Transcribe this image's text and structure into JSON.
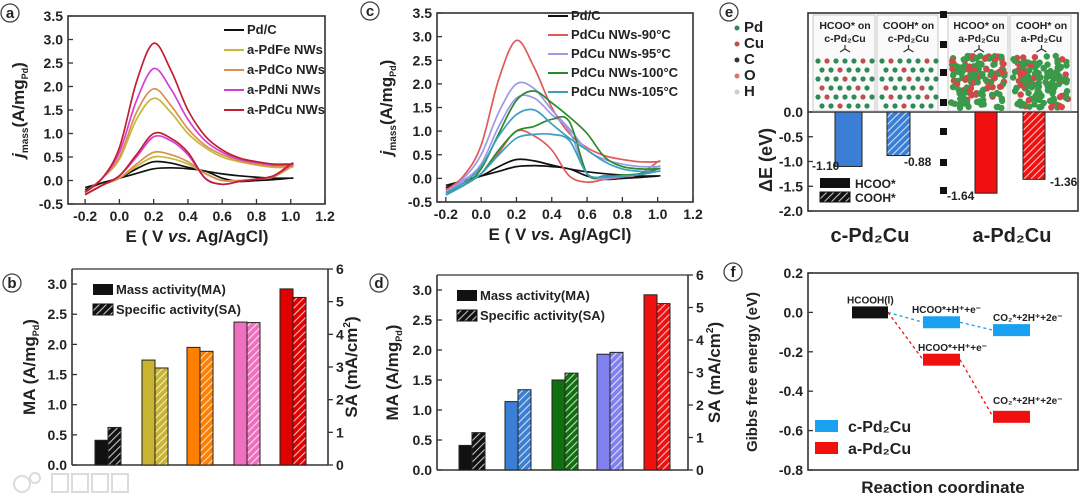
{
  "panel_labels": {
    "a": "a",
    "b": "b",
    "c": "c",
    "d": "d",
    "e": "e",
    "f": "f"
  },
  "watermark": "大数跨境",
  "chart_data": [
    {
      "id": "a",
      "type": "line",
      "ylabel_parts": {
        "j": "j",
        "sub": "mass",
        "main": "(A/mg",
        "sub2": "Pd",
        "end": ")"
      },
      "xlabel_parts": {
        "pre": "E ( V ",
        "it": "vs.",
        "post": " Ag/AgCl)"
      },
      "xlim": [
        -0.3,
        1.2
      ],
      "ylim": [
        -0.5,
        3.5
      ],
      "xticks": [
        "-0.2",
        "0.0",
        "0.2",
        "0.4",
        "0.6",
        "0.8",
        "1.0",
        "1.2"
      ],
      "yticks": [
        "-0.5",
        "0.0",
        "0.5",
        "1.0",
        "1.5",
        "2.0",
        "2.5",
        "3.0",
        "3.5"
      ],
      "legend": "top-right",
      "x": [
        -0.2,
        -0.1,
        0,
        0.1,
        0.2,
        0.3,
        0.4,
        0.5,
        0.6,
        0.7,
        0.8,
        0.9,
        1.0
      ],
      "series": [
        {
          "name": "Pd/C",
          "color": "#111111",
          "forward": [
            -0.15,
            -0.05,
            0.05,
            0.15,
            0.25,
            0.27,
            0.25,
            0.2,
            0.05,
            -0.02,
            0.0,
            0.02,
            0.05
          ],
          "reverse": [
            -0.2,
            -0.05,
            0.05,
            0.25,
            0.4,
            0.37,
            0.28,
            0.2,
            0.14,
            0.1,
            0.07,
            0.05,
            0.05
          ]
        },
        {
          "name": "a-PdFe NWs",
          "color": "#c8b838",
          "forward": [
            -0.3,
            -0.1,
            0.05,
            0.3,
            0.5,
            0.47,
            0.35,
            0.15,
            0.0,
            0.0,
            0.03,
            0.08,
            0.28
          ],
          "reverse": [
            -0.25,
            0.05,
            0.45,
            1.3,
            1.75,
            1.45,
            1.0,
            0.7,
            0.5,
            0.4,
            0.33,
            0.28,
            0.28
          ]
        },
        {
          "name": "a-PdCo NWs",
          "color": "#d99050",
          "forward": [
            -0.3,
            -0.1,
            0.05,
            0.35,
            0.6,
            0.55,
            0.4,
            0.15,
            0.0,
            0.0,
            0.03,
            0.08,
            0.3
          ],
          "reverse": [
            -0.25,
            0.05,
            0.5,
            1.45,
            1.95,
            1.6,
            1.1,
            0.75,
            0.55,
            0.42,
            0.35,
            0.3,
            0.3
          ]
        },
        {
          "name": "a-PdNi NWs",
          "color": "#d040d8",
          "forward": [
            -0.3,
            -0.1,
            0.1,
            0.5,
            0.93,
            0.85,
            0.55,
            0.05,
            -0.08,
            -0.02,
            0.03,
            0.1,
            0.33
          ],
          "reverse": [
            -0.25,
            0.05,
            0.6,
            1.7,
            2.38,
            1.95,
            1.3,
            0.85,
            0.6,
            0.45,
            0.38,
            0.33,
            0.33
          ]
        },
        {
          "name": "a-PdCu NWs",
          "color": "#c02030",
          "forward": [
            -0.3,
            -0.1,
            0.1,
            0.55,
            1.0,
            0.9,
            0.6,
            0.05,
            -0.08,
            -0.02,
            0.03,
            0.1,
            0.35
          ],
          "reverse": [
            -0.25,
            0.05,
            0.7,
            2.1,
            2.92,
            2.35,
            1.5,
            0.95,
            0.65,
            0.48,
            0.4,
            0.35,
            0.35
          ]
        }
      ]
    },
    {
      "id": "c",
      "type": "line",
      "xlim": [
        -0.25,
        1.2
      ],
      "ylim": [
        -0.5,
        3.5
      ],
      "xticks": [
        "-0.2",
        "0.0",
        "0.2",
        "0.4",
        "0.6",
        "0.8",
        "1.0",
        "1.2"
      ],
      "yticks": [
        "-0.5",
        "0.0",
        "0.5",
        "1.0",
        "1.5",
        "2.0",
        "2.5",
        "3.0",
        "3.5"
      ],
      "legend": "top-right",
      "x": [
        -0.2,
        -0.1,
        0,
        0.1,
        0.2,
        0.3,
        0.4,
        0.5,
        0.6,
        0.7,
        0.8,
        0.9,
        1.0
      ],
      "series": [
        {
          "name": "Pd/C",
          "color": "#111111",
          "forward": [
            -0.15,
            -0.05,
            0.05,
            0.15,
            0.25,
            0.27,
            0.25,
            0.2,
            0.05,
            -0.02,
            0.0,
            0.02,
            0.05
          ],
          "reverse": [
            -0.2,
            -0.05,
            0.05,
            0.25,
            0.4,
            0.37,
            0.28,
            0.2,
            0.14,
            0.1,
            0.07,
            0.05,
            0.05
          ]
        },
        {
          "name": "PdCu NWs-90°C",
          "color": "#e05a5a",
          "forward": [
            -0.3,
            -0.1,
            0.1,
            0.55,
            1.0,
            0.9,
            0.6,
            0.05,
            -0.08,
            -0.02,
            0.03,
            0.1,
            0.35
          ],
          "reverse": [
            -0.25,
            0.05,
            0.7,
            2.1,
            2.92,
            2.35,
            1.5,
            0.95,
            0.65,
            0.48,
            0.4,
            0.35,
            0.35
          ]
        },
        {
          "name": "PdCu NWs-95°C",
          "color": "#9a9ae8",
          "forward": [
            -0.3,
            -0.05,
            0.3,
            1.1,
            1.7,
            1.7,
            1.35,
            1.0,
            0.1,
            0.0,
            0.05,
            0.1,
            0.25
          ],
          "reverse": [
            -0.3,
            0.0,
            0.5,
            1.4,
            2.0,
            1.9,
            1.45,
            1.05,
            0.6,
            0.4,
            0.3,
            0.25,
            0.25
          ]
        },
        {
          "name": "PdCu NWs-100°C",
          "color": "#2a8a2a",
          "forward": [
            -0.35,
            -0.15,
            0.1,
            0.6,
            1.0,
            1.1,
            1.25,
            1.2,
            0.1,
            0.05,
            0.07,
            0.1,
            0.2
          ],
          "reverse": [
            -0.3,
            -0.15,
            0.2,
            0.95,
            1.65,
            1.85,
            1.6,
            1.3,
            0.95,
            0.45,
            0.25,
            0.2,
            0.2
          ]
        },
        {
          "name": "PdCu NWs-105°C",
          "color": "#3aa0c0",
          "forward": [
            -0.35,
            -0.15,
            0.1,
            0.5,
            0.85,
            0.93,
            0.93,
            0.8,
            0.1,
            0.03,
            0.05,
            0.08,
            0.15
          ],
          "reverse": [
            -0.3,
            -0.1,
            0.25,
            0.9,
            1.35,
            1.45,
            1.15,
            0.85,
            0.6,
            0.35,
            0.2,
            0.15,
            0.15
          ]
        }
      ]
    },
    {
      "id": "b",
      "type": "bar",
      "ylabel": {
        "main": "MA (A/mg",
        "sub": "Pd",
        "end": ")"
      },
      "y2label": {
        "main": "SA (mA/cm",
        "sup": "2",
        "end": ")"
      },
      "ylim": [
        0,
        3.25
      ],
      "y2lim": [
        0,
        6
      ],
      "yticks": [
        "0.0",
        "0.5",
        "1.0",
        "1.5",
        "2.0",
        "2.5",
        "3.0"
      ],
      "y2ticks": [
        "0",
        "1",
        "2",
        "3",
        "4",
        "5",
        "6"
      ],
      "legend": {
        "ma": "Mass activity(MA)",
        "sa": "Specific activity(SA)"
      },
      "categories": [
        "Pd/C",
        "a-PdFe NWs",
        "a-PdCo NWs",
        "a-PdNi NWs",
        "a-PdCu NWs"
      ],
      "colors": [
        "#111111",
        "#c8b430",
        "#ff8000",
        "#f070c0",
        "#e00000"
      ],
      "series": [
        {
          "name": "Mass activity(MA)",
          "axis": "left",
          "values": [
            0.41,
            1.74,
            1.95,
            2.37,
            2.92
          ]
        },
        {
          "name": "Specific activity(SA)",
          "axis": "right",
          "values": [
            1.15,
            2.97,
            3.48,
            4.36,
            5.13
          ]
        }
      ]
    },
    {
      "id": "d",
      "type": "bar",
      "ylim": [
        0,
        3.25
      ],
      "y2lim": [
        0,
        6
      ],
      "yticks": [
        "0.0",
        "0.5",
        "1.0",
        "1.5",
        "2.0",
        "2.5",
        "3.0"
      ],
      "y2ticks": [
        "0",
        "1",
        "2",
        "3",
        "4",
        "5",
        "6"
      ],
      "categories": [
        "Pd/C",
        "PdCu NWs-105°C",
        "PdCu NWs-100°C",
        "PdCu NWs-95°C",
        "PdCu NWs-90°C"
      ],
      "colors": [
        "#111111",
        "#3a7fd5",
        "#107010",
        "#8080f0",
        "#f01010"
      ],
      "series": [
        {
          "name": "Mass activity(MA)",
          "axis": "left",
          "values": [
            0.41,
            1.14,
            1.5,
            1.93,
            2.92
          ]
        },
        {
          "name": "Specific activity(SA)",
          "axis": "right",
          "values": [
            1.15,
            2.47,
            2.98,
            3.62,
            5.12
          ]
        }
      ]
    },
    {
      "id": "e",
      "type": "bar",
      "ylabel": "ΔE (eV)",
      "ylim": [
        -2.0,
        2.0
      ],
      "yticks": [
        "0.0",
        "-0.5",
        "-1.0",
        "-1.5",
        "-2.0"
      ],
      "groups": [
        "c-Pd₂Cu",
        "a-Pd₂Cu"
      ],
      "legend": {
        "solid": "HCOO*",
        "hatched": "COOH*"
      },
      "atom_legend": [
        {
          "name": "Pd",
          "color": "#2e8b57"
        },
        {
          "name": "Cu",
          "color": "#c0504d"
        },
        {
          "name": "C",
          "color": "#333333"
        },
        {
          "name": "O",
          "color": "#e07070"
        },
        {
          "name": "H",
          "color": "#cccccc"
        }
      ],
      "insets": [
        {
          "line1": "HCOO* on",
          "line2": "c-Pd₂Cu",
          "color": "#2a8ab8",
          "structure": "crystalline"
        },
        {
          "line1": "COOH* on",
          "line2": "c-Pd₂Cu",
          "color": "#2a8ab8",
          "structure": "crystalline"
        },
        {
          "line1": "HCOO* on",
          "line2": "a-Pd₂Cu",
          "color": "#c04040",
          "structure": "amorphous"
        },
        {
          "line1": "COOH* on",
          "line2": "a-Pd₂Cu",
          "color": "#c04040",
          "structure": "amorphous"
        }
      ],
      "bars": [
        {
          "group": "c-Pd₂Cu",
          "adsorbate": "HCOO*",
          "value": -1.1,
          "label": "-1.10",
          "color": "#3a7fd5",
          "hatched": false
        },
        {
          "group": "c-Pd₂Cu",
          "adsorbate": "COOH*",
          "value": -0.88,
          "label": "-0.88",
          "color": "#3a7fd5",
          "hatched": true
        },
        {
          "group": "a-Pd₂Cu",
          "adsorbate": "HCOO*",
          "value": -1.64,
          "label": "-1.64",
          "color": "#f01010",
          "hatched": false
        },
        {
          "group": "a-Pd₂Cu",
          "adsorbate": "COOH*",
          "value": -1.36,
          "label": "-1.36",
          "color": "#f01010",
          "hatched": true
        }
      ]
    },
    {
      "id": "f",
      "type": "line",
      "ylabel": "Gibbs free energy (eV)",
      "xlabel": "Reaction coordinate",
      "ylim": [
        -0.8,
        0.2
      ],
      "yticks": [
        "0.2",
        "0.0",
        "-0.2",
        "-0.4",
        "-0.6",
        "-0.8"
      ],
      "legend": "bottom-left",
      "initial": {
        "label": "HCOOH(l)",
        "value": 0.0,
        "color": "#111111"
      },
      "series": [
        {
          "name": "c-Pd₂Cu",
          "color": "#1aa0f0",
          "steps": [
            {
              "label": "HCOO*+H⁺+e⁻",
              "value": -0.05
            },
            {
              "label": "CO₂*+2H⁺+2e⁻",
              "value": -0.09
            }
          ]
        },
        {
          "name": "a-Pd₂Cu",
          "color": "#f01010",
          "steps": [
            {
              "label": "HCOO*+H⁺+e⁻",
              "value": -0.24
            },
            {
              "label": "CO₂*+2H⁺+2e⁻",
              "value": -0.53
            }
          ]
        }
      ]
    }
  ]
}
